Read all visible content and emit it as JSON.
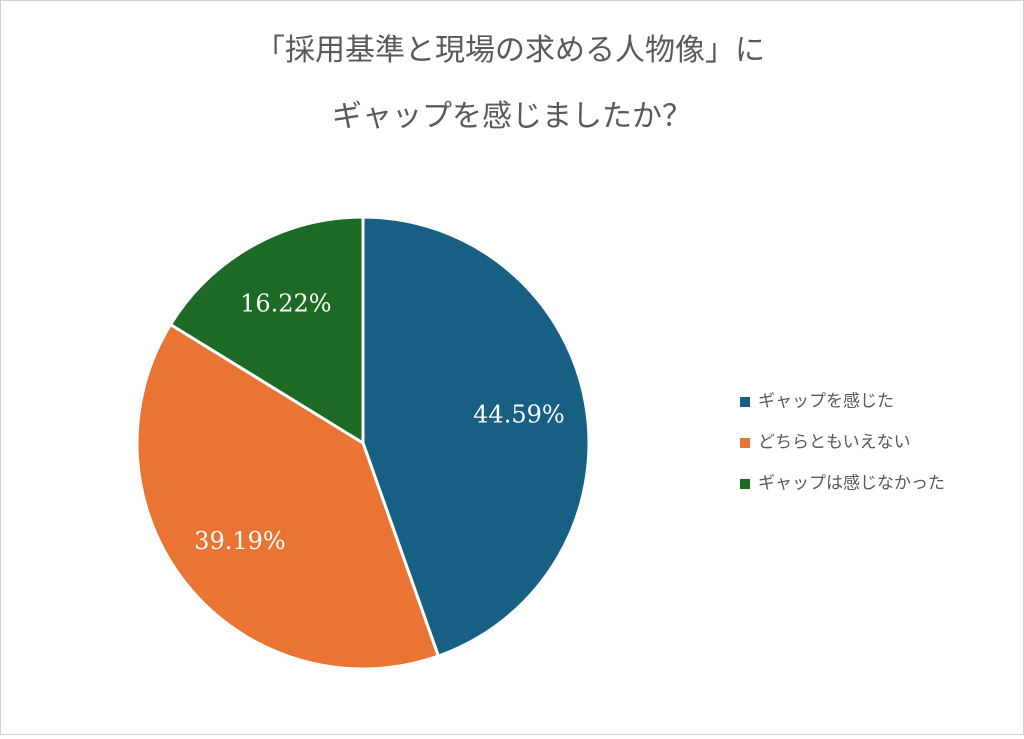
{
  "chart_data": {
    "type": "pie",
    "title": [
      "「採用基準と現場の求める人物像」に",
      "ギャップを感じましたか？"
    ],
    "categories": [
      "ギャップを感じた",
      "どちらともいえない",
      "ギャップは感じなかった"
    ],
    "values": [
      44.59,
      39.19,
      16.22
    ],
    "value_labels": [
      "44.59%",
      "39.19%",
      "16.22%"
    ],
    "colors": [
      "#176084",
      "#e97433",
      "#1d6a25"
    ],
    "legend": "right"
  }
}
